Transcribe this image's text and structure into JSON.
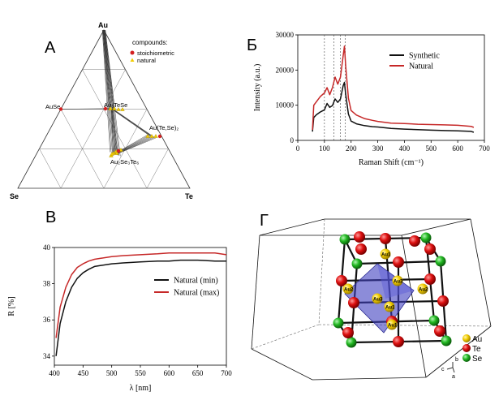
{
  "panels": {
    "a": {
      "letter": "A",
      "vertices": {
        "top": "Au",
        "left": "Se",
        "right": "Te"
      },
      "legend_title": "compounds:",
      "legend": [
        {
          "label": "stoichiometric",
          "color": "#d42020"
        },
        {
          "label": "natural",
          "color": "#f2cc00"
        }
      ],
      "compound_labels": {
        "ause": "AuSe",
        "autese": "Au₃TeSe",
        "autese2": "Au(Te,Se)₂",
        "au2se2te": "Au₂Se₃Te₆"
      }
    },
    "b": {
      "letter": "Б"
    },
    "c": {
      "letter": "B"
    },
    "d": {
      "letter": "Г",
      "legend": [
        {
          "label": "Au",
          "color": "#f2cc00"
        },
        {
          "label": "Te",
          "color": "#dd1010"
        },
        {
          "label": "Se",
          "color": "#22b822"
        }
      ],
      "atom_labels": [
        "Au1",
        "Au1",
        "Au1",
        "Au2",
        "Au2",
        "Au3",
        "Au3"
      ],
      "axes": {
        "b": "b",
        "c": "c",
        "a": "a"
      }
    }
  },
  "chart_data": [
    {
      "type": "line",
      "panel": "Б",
      "xlabel": "Raman Shift (cm⁻¹)",
      "ylabel": "Intensity (a.u.)",
      "xlim": [
        0,
        700
      ],
      "ylim": [
        0,
        30000
      ],
      "xticks": [
        "0",
        "100",
        "200",
        "300",
        "400",
        "500",
        "600",
        "700"
      ],
      "yticks": [
        "0",
        "10000",
        "20000",
        "30000"
      ],
      "reference_lines_x": [
        100,
        135,
        160,
        178
      ],
      "legend_placement": "top-right",
      "series": [
        {
          "name": "Synthetic",
          "color": "#111111",
          "x": [
            55,
            60,
            70,
            85,
            100,
            110,
            120,
            130,
            140,
            150,
            160,
            170,
            175,
            180,
            190,
            200,
            220,
            250,
            280,
            300,
            350,
            400,
            450,
            500,
            550,
            600,
            650,
            660
          ],
          "y": [
            2500,
            6500,
            7300,
            8100,
            8700,
            10500,
            9400,
            9900,
            11800,
            10800,
            11800,
            15500,
            16500,
            13000,
            7500,
            5500,
            4700,
            4200,
            3900,
            3800,
            3400,
            3200,
            3050,
            2900,
            2800,
            2700,
            2550,
            2300
          ]
        },
        {
          "name": "Natural",
          "color": "#c62828",
          "x": [
            55,
            60,
            70,
            85,
            100,
            110,
            120,
            130,
            140,
            150,
            160,
            170,
            175,
            180,
            190,
            200,
            220,
            250,
            280,
            300,
            350,
            400,
            450,
            500,
            550,
            600,
            650,
            660
          ],
          "y": [
            3000,
            10000,
            11000,
            12500,
            13500,
            15000,
            13000,
            15000,
            18000,
            16000,
            18000,
            24000,
            26800,
            21000,
            12000,
            8500,
            7200,
            6200,
            5700,
            5400,
            4900,
            4800,
            4600,
            4500,
            4400,
            4300,
            4000,
            3700
          ]
        }
      ]
    },
    {
      "type": "line",
      "panel": "B",
      "xlabel": "λ [nm]",
      "ylabel": "R [%]",
      "xlim": [
        400,
        700
      ],
      "ylim": [
        33.5,
        40
      ],
      "xticks": [
        "400",
        "450",
        "500",
        "550",
        "600",
        "650",
        "700"
      ],
      "yticks": [
        "34",
        "36",
        "38",
        "40"
      ],
      "legend_placement": "center-right",
      "series": [
        {
          "name": "Natural (min)",
          "color": "#111111",
          "x": [
            403,
            410,
            420,
            430,
            440,
            450,
            460,
            470,
            480,
            500,
            520,
            550,
            580,
            600,
            620,
            650,
            680,
            700
          ],
          "y": [
            34.0,
            35.8,
            37.0,
            37.8,
            38.3,
            38.6,
            38.8,
            38.95,
            39.0,
            39.1,
            39.15,
            39.2,
            39.25,
            39.25,
            39.3,
            39.3,
            39.25,
            39.25
          ]
        },
        {
          "name": "Natural (max)",
          "color": "#c62828",
          "x": [
            403,
            410,
            420,
            430,
            440,
            450,
            460,
            470,
            480,
            500,
            520,
            550,
            580,
            600,
            620,
            650,
            680,
            700
          ],
          "y": [
            35.0,
            36.7,
            37.8,
            38.5,
            38.9,
            39.1,
            39.25,
            39.35,
            39.4,
            39.5,
            39.55,
            39.6,
            39.65,
            39.7,
            39.7,
            39.7,
            39.7,
            39.6
          ]
        }
      ]
    }
  ]
}
